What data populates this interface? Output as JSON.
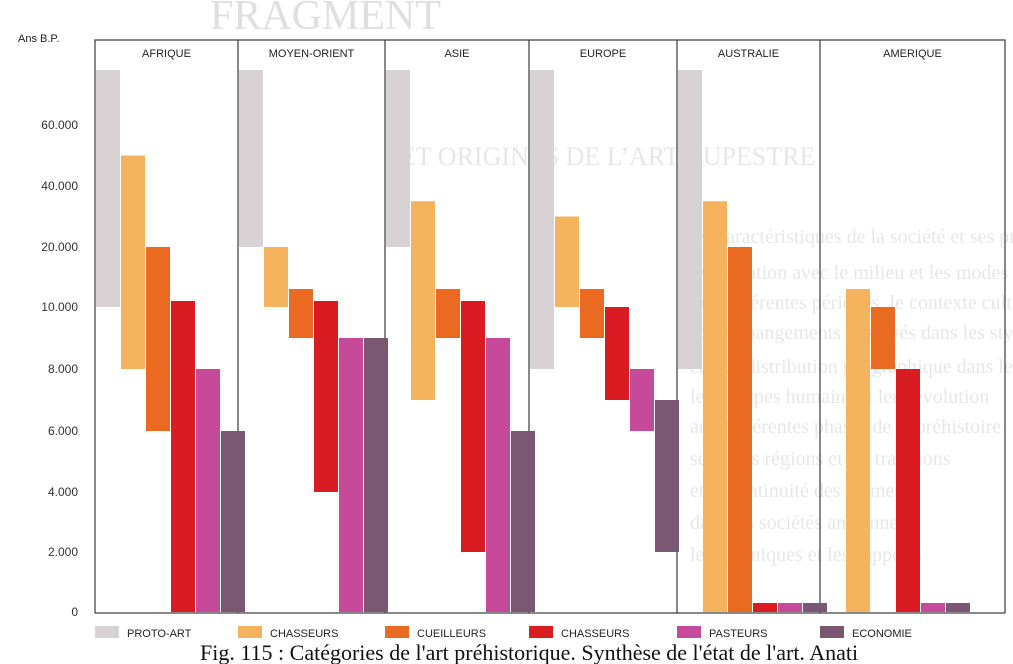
{
  "chart_data": {
    "type": "bar",
    "ylabel": "Ans B.P.",
    "y_ticks": [
      "0",
      "2.000",
      "4.000",
      "6.000",
      "8.000",
      "10.000",
      "20.000",
      "40.000",
      "60.000"
    ],
    "y_tick_values": [
      0,
      2000,
      4000,
      6000,
      8000,
      10000,
      20000,
      40000,
      60000
    ],
    "y_scale": "piecewise",
    "categories": [
      "AFRIQUE",
      "MOYEN-ORIENT",
      "ASIE",
      "EUROPE",
      "AUSTRALIE",
      "AMERIQUE"
    ],
    "series": [
      {
        "name": "PROTO-ART",
        "color": "#d8d2d4",
        "ranges": [
          [
            10000,
            80000
          ],
          [
            20000,
            80000
          ],
          [
            20000,
            80000
          ],
          [
            8000,
            80000
          ],
          [
            8000,
            80000
          ],
          null
        ]
      },
      {
        "name": "CHASSEURS",
        "color": "#f4b35c",
        "ranges": [
          [
            8000,
            50000
          ],
          [
            10000,
            20000
          ],
          [
            7000,
            35000
          ],
          [
            10000,
            30000
          ],
          [
            0,
            35000
          ],
          [
            0,
            13000
          ]
        ]
      },
      {
        "name": "CUEILLEURS",
        "color": "#ea6a22",
        "ranges": [
          [
            6000,
            20000
          ],
          [
            9000,
            13000
          ],
          [
            9000,
            13000
          ],
          [
            9000,
            13000
          ],
          [
            0,
            20000
          ],
          [
            8000,
            10000
          ]
        ]
      },
      {
        "name": "CHASSEURS",
        "color": "#d81c22",
        "ranges": [
          [
            0,
            11000
          ],
          [
            4000,
            11000
          ],
          [
            2000,
            11000
          ],
          [
            7000,
            10000
          ],
          [
            0,
            300
          ],
          [
            0,
            8000
          ]
        ]
      },
      {
        "name": "PASTEURS",
        "color": "#c74a9a",
        "ranges": [
          [
            0,
            8000
          ],
          [
            0,
            9000
          ],
          [
            0,
            9000
          ],
          [
            6000,
            8000
          ],
          [
            0,
            300
          ],
          [
            0,
            300
          ]
        ]
      },
      {
        "name": "ECONOMIE",
        "color": "#7a5873",
        "ranges": [
          [
            0,
            6000
          ],
          [
            0,
            9000
          ],
          [
            0,
            6000
          ],
          [
            2000,
            7000
          ],
          [
            0,
            300
          ],
          [
            0,
            300
          ]
        ]
      }
    ],
    "legend_position": "bottom"
  },
  "caption": "Fig. 115 : Catégories de l'art préhistorique. Synthèse de l'état de l'art. Anati"
}
